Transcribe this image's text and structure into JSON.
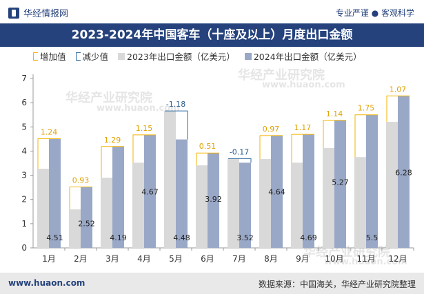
{
  "header": {
    "site_name": "华经情报网",
    "slogan": "专业严谨 ● 客观科学",
    "title": "2023-2024年中国客车（十座及以上）月度出口金额"
  },
  "legend": {
    "increase": "增加值",
    "decrease": "减少值",
    "series_2023": "2023年出口金额（亿美元）",
    "series_2024": "2024年出口金额（亿美元）"
  },
  "watermarks": [
    "华经产业研究院",
    "www.huaon.com",
    "华经产业研究院",
    "www.huaon.com",
    "华经产业研究院",
    "www.huaon.com"
  ],
  "footer": {
    "url": "www.huaon.com",
    "source": "数据来源：中国海关，华经产业研究院整理"
  },
  "colors": {
    "title_bg": "#25427c",
    "bar_2023": "#d9d9d9",
    "bar_2024": "#9aa8c7",
    "increase": "#f5b400",
    "decrease": "#2c6aa0",
    "increase_label": "#e0a100",
    "decrease_label": "#2c5f8f"
  },
  "chart_data": {
    "type": "bar",
    "categories": [
      "1月",
      "2月",
      "3月",
      "4月",
      "5月",
      "6月",
      "7月",
      "8月",
      "9月",
      "10月",
      "11月",
      "12月"
    ],
    "series": [
      {
        "name": "2023年出口金额（亿美元）",
        "values": [
          3.27,
          1.59,
          2.9,
          3.52,
          5.66,
          3.41,
          3.69,
          3.67,
          3.52,
          4.13,
          3.75,
          5.21
        ]
      },
      {
        "name": "2024年出口金额（亿美元）",
        "values": [
          4.51,
          2.52,
          4.19,
          4.67,
          4.48,
          3.92,
          3.52,
          4.64,
          4.69,
          5.27,
          5.5,
          6.28
        ]
      }
    ],
    "diff_labels": [
      "1.24",
      "0.93",
      "1.29",
      "1.15",
      "-1.18",
      "0.51",
      "-0.17",
      "0.97",
      "1.17",
      "1.14",
      "1.75",
      "1.07"
    ],
    "value_labels_2024": [
      "4.51",
      "2.52",
      "4.19",
      "4.67",
      "4.48",
      "3.92",
      "3.52",
      "4.64",
      "4.69",
      "5.27",
      "5.5",
      "6.28"
    ],
    "y_ticks": [
      "0",
      "1",
      "2",
      "3",
      "4",
      "5",
      "6",
      "7"
    ],
    "ylim": [
      0,
      7
    ],
    "grid": false,
    "legend_position": "top"
  }
}
